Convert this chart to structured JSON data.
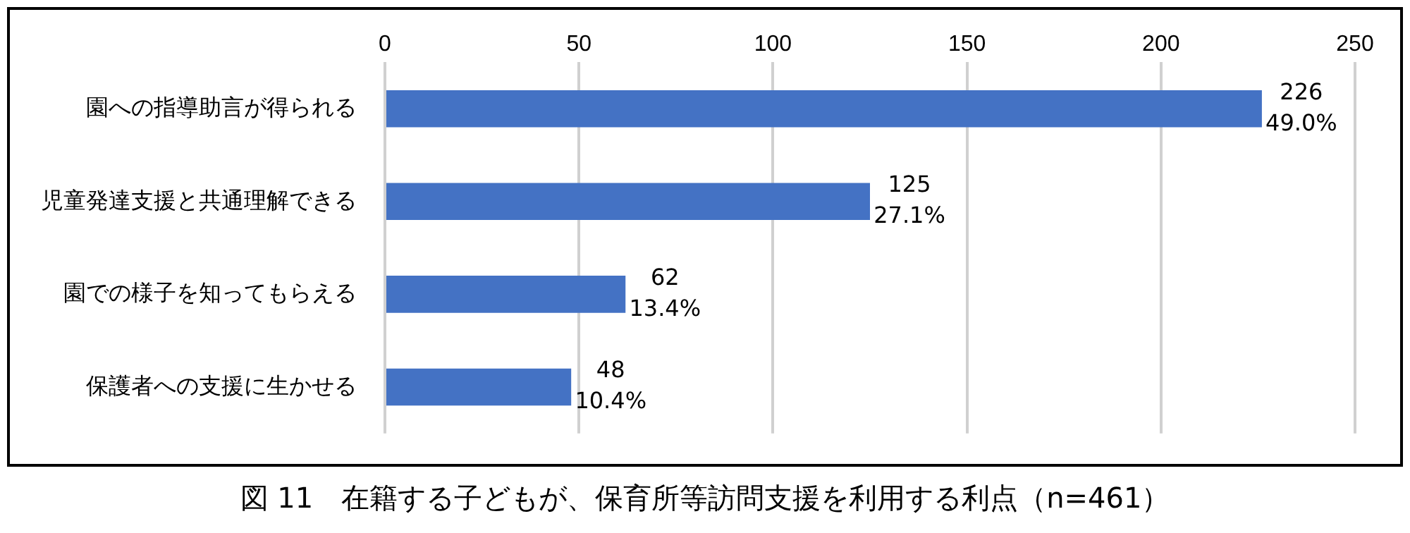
{
  "chart_data": {
    "type": "bar",
    "orientation": "horizontal",
    "title": "図 11　在籍する子どもが、保育所等訪問支援を利用する利点（n=461）",
    "categories": [
      "園への指導助言が得られる",
      "児童発達支援と共通理解できる",
      "園での様子を知ってもらえる",
      "保護者への支援に生かせる"
    ],
    "values": [
      226,
      125,
      62,
      48
    ],
    "value_labels": [
      "226\n49.0%",
      "125\n27.1%",
      "62\n13.4%",
      "48\n10.4%"
    ],
    "color": "#4472c4",
    "xlim": [
      0,
      250
    ],
    "xticks": [
      0,
      50,
      100,
      150,
      200,
      250
    ],
    "grid": "x"
  }
}
